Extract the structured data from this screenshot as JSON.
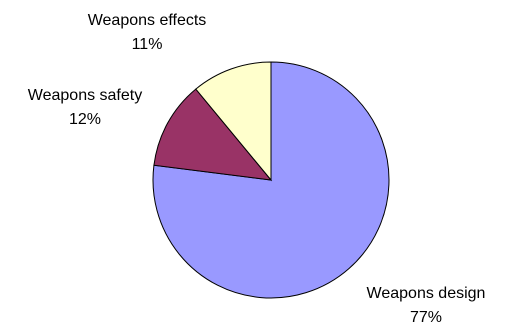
{
  "chart_data": {
    "type": "pie",
    "title": "",
    "slices": [
      {
        "label": "Weapons design",
        "value": 77,
        "value_label": "77%",
        "color": "#9999ff"
      },
      {
        "label": "Weapons safety",
        "value": 12,
        "value_label": "12%",
        "color": "#993366"
      },
      {
        "label": "Weapons effects",
        "value": 11,
        "value_label": "11%",
        "color": "#ffffcc"
      }
    ],
    "legend": "none",
    "start_angle_deg": 0,
    "direction": "clockwise"
  }
}
